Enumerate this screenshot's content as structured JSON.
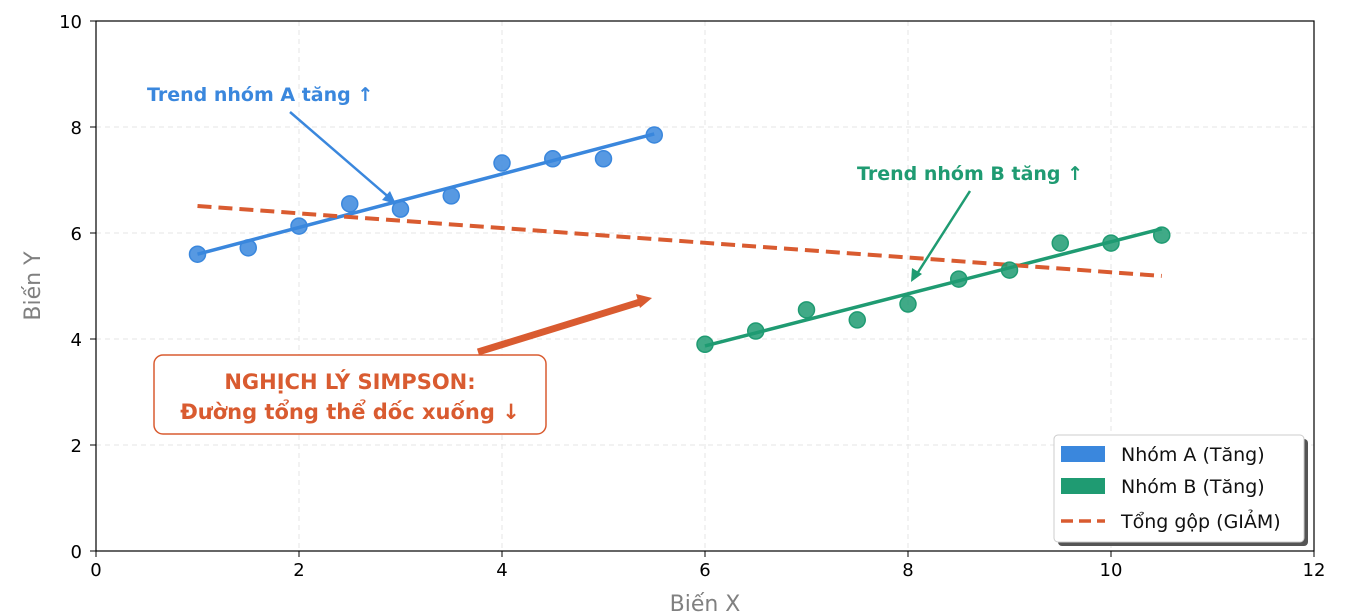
{
  "chart_data": {
    "type": "scatter",
    "xlabel": "Biến X",
    "ylabel": "Biến Y",
    "xlim": [
      0,
      12
    ],
    "ylim": [
      0,
      10
    ],
    "xticks": [
      0,
      2,
      4,
      6,
      8,
      10,
      12
    ],
    "yticks": [
      0,
      2,
      4,
      6,
      8,
      10
    ],
    "grid": true,
    "legend_position": "lower-right",
    "series": [
      {
        "name": "Nhóm A (Tăng)",
        "color": "#3a87dd",
        "x": [
          1,
          1.5,
          2,
          2.5,
          3,
          3.5,
          4,
          4.5,
          5,
          5.5
        ],
        "y": [
          5.6,
          5.72,
          6.13,
          6.55,
          6.45,
          6.7,
          7.32,
          7.4,
          7.4,
          7.85
        ],
        "trend": {
          "x": [
            1,
            5.5
          ],
          "y": [
            5.6,
            7.87
          ]
        }
      },
      {
        "name": "Nhóm B (Tăng)",
        "color": "#1f9b72",
        "x": [
          6,
          6.5,
          7,
          7.5,
          8,
          8.5,
          9,
          9.5,
          10,
          10.5
        ],
        "y": [
          3.9,
          4.15,
          4.55,
          4.36,
          4.66,
          5.13,
          5.3,
          5.81,
          5.81,
          5.96
        ],
        "trend": {
          "x": [
            6,
            10.5
          ],
          "y": [
            3.87,
            6.08
          ]
        }
      }
    ],
    "overall_trend": {
      "name": "Tổng gộp (GIẢM)",
      "color": "#d95b30",
      "x": [
        1,
        10.5
      ],
      "y": [
        6.51,
        5.19
      ]
    },
    "annotations": {
      "a": "Trend nhóm A tăng ↑",
      "b": "Trend nhóm B tăng ↑",
      "simpson_line1": "NGHỊCH LÝ SIMPSON:",
      "simpson_line2": "Đường tổng thể dốc xuống ↓"
    }
  }
}
